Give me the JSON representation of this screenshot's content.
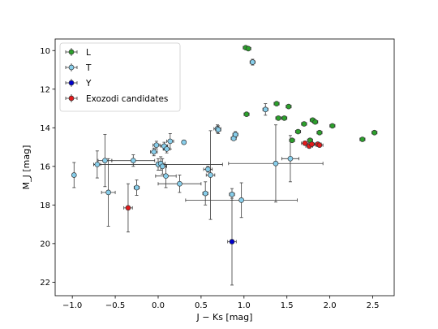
{
  "chart_data": {
    "type": "scatter",
    "xlabel": "J − Ks [mag]",
    "ylabel": "M_J [mag]",
    "xlim": [
      -1.2,
      2.75
    ],
    "ylim": [
      22.7,
      9.4
    ],
    "y_inverted": true,
    "x_ticks": [
      -1.0,
      -0.5,
      0.0,
      0.5,
      1.0,
      1.5,
      2.0,
      2.5
    ],
    "x_tick_labels": [
      "−1.0",
      "−0.5",
      "0.0",
      "0.5",
      "1.0",
      "1.5",
      "2.0",
      "2.5"
    ],
    "y_ticks": [
      10,
      12,
      14,
      16,
      18,
      20,
      22
    ],
    "y_tick_labels": [
      "10",
      "12",
      "14",
      "16",
      "18",
      "20",
      "22"
    ],
    "grid": false,
    "legend_position": "top-left",
    "series": [
      {
        "name": "L",
        "color": "#2ca02c",
        "points": [
          {
            "x": 1.02,
            "y": 9.85,
            "xerr": 0.03,
            "yerr": 0.05
          },
          {
            "x": 1.05,
            "y": 9.9,
            "xerr": 0.03,
            "yerr": 0.05
          },
          {
            "x": 1.03,
            "y": 13.3,
            "xerr": 0.03,
            "yerr": 0.06
          },
          {
            "x": 1.38,
            "y": 12.75,
            "xerr": 0.03,
            "yerr": 0.05
          },
          {
            "x": 1.4,
            "y": 13.5,
            "xerr": 0.03,
            "yerr": 0.05
          },
          {
            "x": 1.47,
            "y": 13.5,
            "xerr": 0.03,
            "yerr": 0.05
          },
          {
            "x": 1.52,
            "y": 12.9,
            "xerr": 0.03,
            "yerr": 0.05
          },
          {
            "x": 1.56,
            "y": 14.65,
            "xerr": 0.03,
            "yerr": 0.05
          },
          {
            "x": 1.63,
            "y": 14.2,
            "xerr": 0.03,
            "yerr": 0.05
          },
          {
            "x": 1.7,
            "y": 13.8,
            "xerr": 0.03,
            "yerr": 0.05
          },
          {
            "x": 1.77,
            "y": 14.65,
            "xerr": 0.03,
            "yerr": 0.05
          },
          {
            "x": 1.8,
            "y": 13.6,
            "xerr": 0.03,
            "yerr": 0.05
          },
          {
            "x": 1.83,
            "y": 13.7,
            "xerr": 0.03,
            "yerr": 0.05
          },
          {
            "x": 1.88,
            "y": 14.25,
            "xerr": 0.03,
            "yerr": 0.05
          },
          {
            "x": 2.03,
            "y": 13.9,
            "xerr": 0.03,
            "yerr": 0.05
          },
          {
            "x": 2.38,
            "y": 14.6,
            "xerr": 0.03,
            "yerr": 0.05
          },
          {
            "x": 2.52,
            "y": 14.25,
            "xerr": 0.03,
            "yerr": 0.05
          }
        ]
      },
      {
        "name": "T",
        "color": "#87ceeb",
        "points": [
          {
            "x": -0.98,
            "y": 16.45,
            "xerr": 0.02,
            "yerr": 0.65
          },
          {
            "x": -0.71,
            "y": 15.9,
            "xerr": 0.04,
            "yerr": 0.7
          },
          {
            "x": -0.62,
            "y": 15.7,
            "xerr": 0.08,
            "yerr": 1.35
          },
          {
            "x": -0.58,
            "y": 17.35,
            "xerr": 0.08,
            "yerr": 1.75
          },
          {
            "x": -0.29,
            "y": 15.7,
            "xerr": 0.25,
            "yerr": 0.3
          },
          {
            "x": -0.25,
            "y": 17.1,
            "xerr": 0.03,
            "yerr": 0.4
          },
          {
            "x": -0.05,
            "y": 15.25,
            "xerr": 0.04,
            "yerr": 0.2
          },
          {
            "x": -0.02,
            "y": 14.9,
            "xerr": 0.04,
            "yerr": 0.2
          },
          {
            "x": 0.0,
            "y": 15.9,
            "xerr": 0.75,
            "yerr": 0.3
          },
          {
            "x": 0.03,
            "y": 15.85,
            "xerr": 0.05,
            "yerr": 0.35
          },
          {
            "x": 0.05,
            "y": 16.0,
            "xerr": 0.05,
            "yerr": 0.4
          },
          {
            "x": 0.07,
            "y": 14.95,
            "xerr": 0.04,
            "yerr": 0.2
          },
          {
            "x": 0.09,
            "y": 16.5,
            "xerr": 0.12,
            "yerr": 0.6
          },
          {
            "x": 0.1,
            "y": 15.1,
            "xerr": 0.04,
            "yerr": 0.2
          },
          {
            "x": 0.14,
            "y": 14.7,
            "xerr": 0.04,
            "yerr": 0.4
          },
          {
            "x": 0.25,
            "y": 16.9,
            "xerr": 0.25,
            "yerr": 0.45
          },
          {
            "x": 0.3,
            "y": 14.75,
            "xerr": 0.02,
            "yerr": 0.1
          },
          {
            "x": 0.55,
            "y": 17.4,
            "xerr": 0.03,
            "yerr": 0.6
          },
          {
            "x": 0.58,
            "y": 16.15,
            "xerr": 0.05,
            "yerr": 0.15
          },
          {
            "x": 0.61,
            "y": 16.45,
            "xerr": 0.05,
            "yerr": 2.3
          },
          {
            "x": 0.69,
            "y": 14.05,
            "xerr": 0.04,
            "yerr": 0.2
          },
          {
            "x": 0.7,
            "y": 14.1,
            "xerr": 0.03,
            "yerr": 0.2
          },
          {
            "x": 0.88,
            "y": 14.55,
            "xerr": 0.03,
            "yerr": 0.1
          },
          {
            "x": 0.9,
            "y": 14.35,
            "xerr": 0.03,
            "yerr": 0.15
          },
          {
            "x": 0.86,
            "y": 17.45,
            "xerr": 0.03,
            "yerr": 0.3
          },
          {
            "x": 0.97,
            "y": 17.75,
            "xerr": 0.65,
            "yerr": 0.9
          },
          {
            "x": 1.1,
            "y": 10.6,
            "xerr": 0.03,
            "yerr": 0.15
          },
          {
            "x": 1.25,
            "y": 13.05,
            "xerr": 0.03,
            "yerr": 0.3
          },
          {
            "x": 1.37,
            "y": 15.85,
            "xerr": 0.55,
            "yerr": 2.0
          },
          {
            "x": 1.54,
            "y": 15.6,
            "xerr": 0.1,
            "yerr": 1.2
          }
        ]
      },
      {
        "name": "Y",
        "color": "#0000cd",
        "points": [
          {
            "x": 0.86,
            "y": 19.9,
            "xerr": 0.05,
            "yerr": 2.25
          }
        ]
      },
      {
        "name": "Exozodi candidates",
        "color": "#e31a1c",
        "points": [
          {
            "x": -0.35,
            "y": 18.15,
            "xerr": 0.05,
            "yerr": 1.25
          },
          {
            "x": 1.71,
            "y": 14.8,
            "xerr": 0.04,
            "yerr": 0.1
          },
          {
            "x": 1.76,
            "y": 14.95,
            "xerr": 0.04,
            "yerr": 0.1
          },
          {
            "x": 1.79,
            "y": 14.85,
            "xerr": 0.04,
            "yerr": 0.1
          },
          {
            "x": 1.86,
            "y": 14.85,
            "xerr": 0.04,
            "yerr": 0.1
          },
          {
            "x": 1.88,
            "y": 14.9,
            "xerr": 0.04,
            "yerr": 0.1
          }
        ]
      }
    ]
  }
}
